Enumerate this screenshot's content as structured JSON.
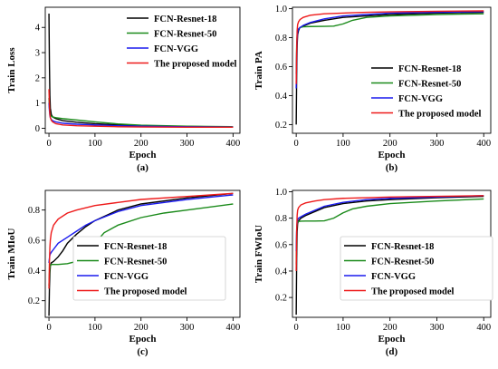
{
  "colors": {
    "FCN-Resnet-18": "#000000",
    "FCN-Resnet-50": "#1a8a1a",
    "FCN-VGG": "#1a1aee",
    "The proposed model": "#ee1a1a"
  },
  "chart_data": [
    {
      "type": "line",
      "panel_label": "(a)",
      "xlabel": "Epoch",
      "ylabel": "Train Loss",
      "xlim": [
        -8,
        415
      ],
      "ylim": [
        -0.2,
        4.8
      ],
      "xticks": [
        0,
        100,
        200,
        300,
        400
      ],
      "yticks": [
        0,
        1,
        2,
        3,
        4
      ],
      "ytick_labels": [
        "0",
        "1",
        "2",
        "3",
        "4"
      ],
      "legend_position": "top-right",
      "series": [
        {
          "name": "FCN-Resnet-18",
          "x": [
            0,
            1,
            2,
            3,
            5,
            8,
            15,
            30,
            60,
            100,
            150,
            200,
            300,
            400
          ],
          "y": [
            4.55,
            2.6,
            1.3,
            0.8,
            0.55,
            0.45,
            0.38,
            0.3,
            0.24,
            0.18,
            0.13,
            0.1,
            0.07,
            0.05
          ]
        },
        {
          "name": "FCN-Resnet-50",
          "x": [
            0,
            1,
            2,
            3,
            5,
            8,
            15,
            30,
            60,
            100,
            150,
            200,
            300,
            400
          ],
          "y": [
            1.2,
            0.8,
            0.6,
            0.52,
            0.48,
            0.45,
            0.42,
            0.38,
            0.33,
            0.25,
            0.17,
            0.12,
            0.08,
            0.06
          ]
        },
        {
          "name": "FCN-VGG",
          "x": [
            0,
            1,
            2,
            3,
            5,
            8,
            15,
            30,
            60,
            100,
            150,
            200,
            300,
            400
          ],
          "y": [
            1.0,
            0.7,
            0.5,
            0.42,
            0.35,
            0.3,
            0.25,
            0.2,
            0.16,
            0.13,
            0.1,
            0.08,
            0.06,
            0.05
          ]
        },
        {
          "name": "The proposed model",
          "x": [
            0,
            1,
            2,
            3,
            5,
            8,
            15,
            30,
            60,
            100,
            150,
            200,
            300,
            400
          ],
          "y": [
            1.55,
            0.9,
            0.55,
            0.42,
            0.32,
            0.25,
            0.18,
            0.13,
            0.1,
            0.08,
            0.06,
            0.05,
            0.04,
            0.04
          ]
        }
      ]
    },
    {
      "type": "line",
      "panel_label": "(b)",
      "xlabel": "Epoch",
      "ylabel": "Train PA",
      "xlim": [
        -8,
        415
      ],
      "ylim": [
        0.14,
        1.01
      ],
      "xticks": [
        0,
        100,
        200,
        300,
        400
      ],
      "yticks": [
        0.2,
        0.4,
        0.6,
        0.8,
        1.0
      ],
      "ytick_labels": [
        "0.2",
        "0.4",
        "0.6",
        "0.8",
        "1.0"
      ],
      "legend_position": "lower-right",
      "series": [
        {
          "name": "FCN-Resnet-18",
          "x": [
            0,
            1,
            2,
            3,
            5,
            8,
            15,
            30,
            60,
            100,
            150,
            200,
            300,
            400
          ],
          "y": [
            0.2,
            0.55,
            0.75,
            0.82,
            0.85,
            0.87,
            0.88,
            0.9,
            0.92,
            0.94,
            0.95,
            0.96,
            0.97,
            0.975
          ]
        },
        {
          "name": "FCN-Resnet-50",
          "x": [
            0,
            1,
            2,
            3,
            5,
            8,
            15,
            30,
            60,
            80,
            100,
            120,
            150,
            200,
            300,
            400
          ],
          "y": [
            0.55,
            0.75,
            0.82,
            0.85,
            0.86,
            0.87,
            0.875,
            0.877,
            0.878,
            0.88,
            0.895,
            0.92,
            0.94,
            0.95,
            0.96,
            0.965
          ]
        },
        {
          "name": "FCN-VGG",
          "x": [
            0,
            1,
            2,
            3,
            5,
            8,
            15,
            30,
            60,
            100,
            150,
            200,
            300,
            400
          ],
          "y": [
            0.45,
            0.7,
            0.8,
            0.84,
            0.86,
            0.87,
            0.885,
            0.905,
            0.93,
            0.95,
            0.96,
            0.97,
            0.975,
            0.98
          ]
        },
        {
          "name": "The proposed model",
          "x": [
            0,
            1,
            2,
            3,
            5,
            8,
            15,
            30,
            60,
            100,
            150,
            200,
            300,
            400
          ],
          "y": [
            0.48,
            0.72,
            0.85,
            0.89,
            0.91,
            0.925,
            0.94,
            0.955,
            0.965,
            0.97,
            0.975,
            0.978,
            0.982,
            0.985
          ]
        }
      ]
    },
    {
      "type": "line",
      "panel_label": "(c)",
      "xlabel": "Epoch",
      "ylabel": "Train MIoU",
      "xlim": [
        -8,
        415
      ],
      "ylim": [
        0.09,
        0.93
      ],
      "xticks": [
        0,
        100,
        200,
        300,
        400
      ],
      "yticks": [
        0.2,
        0.4,
        0.6,
        0.8
      ],
      "ytick_labels": [
        "0.2",
        "0.4",
        "0.6",
        "0.8"
      ],
      "legend_position": "lower-right",
      "series": [
        {
          "name": "FCN-Resnet-18",
          "x": [
            0,
            1,
            2,
            3,
            5,
            10,
            20,
            30,
            40,
            60,
            80,
            100,
            150,
            200,
            300,
            400
          ],
          "y": [
            0.1,
            0.28,
            0.38,
            0.43,
            0.45,
            0.46,
            0.49,
            0.53,
            0.58,
            0.64,
            0.69,
            0.73,
            0.8,
            0.84,
            0.88,
            0.91
          ]
        },
        {
          "name": "FCN-Resnet-50",
          "x": [
            0,
            1,
            2,
            3,
            5,
            10,
            20,
            40,
            60,
            80,
            100,
            120,
            150,
            200,
            250,
            300,
            400
          ],
          "y": [
            0.3,
            0.38,
            0.42,
            0.43,
            0.44,
            0.44,
            0.44,
            0.445,
            0.46,
            0.5,
            0.58,
            0.65,
            0.7,
            0.75,
            0.78,
            0.8,
            0.84
          ]
        },
        {
          "name": "FCN-VGG",
          "x": [
            0,
            1,
            2,
            3,
            5,
            10,
            20,
            40,
            60,
            80,
            100,
            150,
            200,
            300,
            400
          ],
          "y": [
            0.45,
            0.48,
            0.5,
            0.51,
            0.52,
            0.54,
            0.58,
            0.62,
            0.66,
            0.7,
            0.73,
            0.79,
            0.83,
            0.87,
            0.9
          ]
        },
        {
          "name": "The proposed model",
          "x": [
            0,
            1,
            2,
            3,
            5,
            10,
            20,
            40,
            60,
            100,
            150,
            200,
            300,
            400
          ],
          "y": [
            0.28,
            0.45,
            0.55,
            0.6,
            0.65,
            0.7,
            0.74,
            0.78,
            0.8,
            0.83,
            0.85,
            0.87,
            0.89,
            0.91
          ]
        }
      ]
    },
    {
      "type": "line",
      "panel_label": "(d)",
      "xlabel": "Epoch",
      "ylabel": "Train FWIoU",
      "xlim": [
        -8,
        415
      ],
      "ylim": [
        0.05,
        1.01
      ],
      "xticks": [
        0,
        100,
        200,
        300,
        400
      ],
      "yticks": [
        0.2,
        0.4,
        0.6,
        0.8,
        1.0
      ],
      "ytick_labels": [
        "0.2",
        "0.4",
        "0.6",
        "0.8",
        "1.0"
      ],
      "legend_position": "lower-right",
      "series": [
        {
          "name": "FCN-Resnet-18",
          "x": [
            0,
            1,
            2,
            3,
            5,
            10,
            20,
            40,
            60,
            100,
            150,
            200,
            300,
            400
          ],
          "y": [
            0.07,
            0.5,
            0.7,
            0.76,
            0.78,
            0.8,
            0.82,
            0.85,
            0.88,
            0.91,
            0.93,
            0.94,
            0.955,
            0.965
          ]
        },
        {
          "name": "FCN-Resnet-50",
          "x": [
            0,
            1,
            2,
            3,
            5,
            10,
            20,
            40,
            60,
            80,
            100,
            120,
            150,
            200,
            300,
            400
          ],
          "y": [
            0.45,
            0.7,
            0.76,
            0.77,
            0.775,
            0.777,
            0.778,
            0.778,
            0.78,
            0.8,
            0.84,
            0.87,
            0.89,
            0.91,
            0.93,
            0.945
          ]
        },
        {
          "name": "FCN-VGG",
          "x": [
            0,
            1,
            2,
            3,
            5,
            10,
            20,
            40,
            60,
            100,
            150,
            200,
            300,
            400
          ],
          "y": [
            0.55,
            0.72,
            0.77,
            0.79,
            0.8,
            0.81,
            0.83,
            0.86,
            0.89,
            0.92,
            0.94,
            0.95,
            0.96,
            0.97
          ]
        },
        {
          "name": "The proposed model",
          "x": [
            0,
            1,
            2,
            3,
            5,
            10,
            20,
            40,
            60,
            100,
            150,
            200,
            300,
            400
          ],
          "y": [
            0.4,
            0.7,
            0.82,
            0.86,
            0.88,
            0.9,
            0.915,
            0.93,
            0.94,
            0.95,
            0.955,
            0.96,
            0.965,
            0.97
          ]
        }
      ]
    }
  ]
}
